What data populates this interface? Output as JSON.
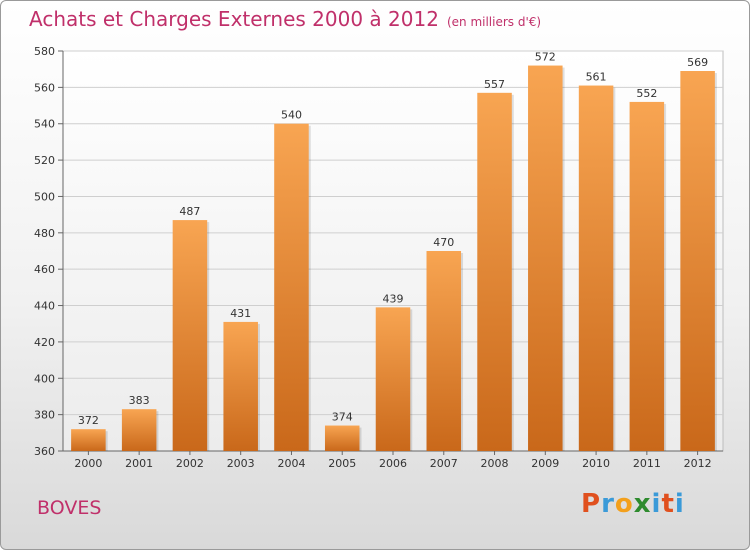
{
  "header": {
    "title": "Achats et Charges Externes 2000 à 2012",
    "unit": "(en milliers d'€)"
  },
  "footer": {
    "commune": "BOVES",
    "logo": [
      "P",
      "r",
      "o",
      "x",
      "i",
      "t",
      "i"
    ]
  },
  "chart_data": {
    "type": "bar",
    "title": "Achats et Charges Externes 2000 à 2012",
    "subtitle": "(en milliers d'€)",
    "categories": [
      "2000",
      "2001",
      "2002",
      "2003",
      "2004",
      "2005",
      "2006",
      "2007",
      "2008",
      "2009",
      "2010",
      "2011",
      "2012"
    ],
    "values": [
      372,
      383,
      487,
      431,
      540,
      374,
      439,
      470,
      557,
      572,
      561,
      552,
      569
    ],
    "ylim": [
      360,
      580
    ],
    "yticks": [
      360,
      380,
      400,
      420,
      440,
      460,
      480,
      500,
      520,
      540,
      560,
      580
    ],
    "grid": true,
    "colors": {
      "bar_top": "#f8a552",
      "bar_bottom": "#c9681a",
      "grid": "#cfcfcf"
    }
  }
}
